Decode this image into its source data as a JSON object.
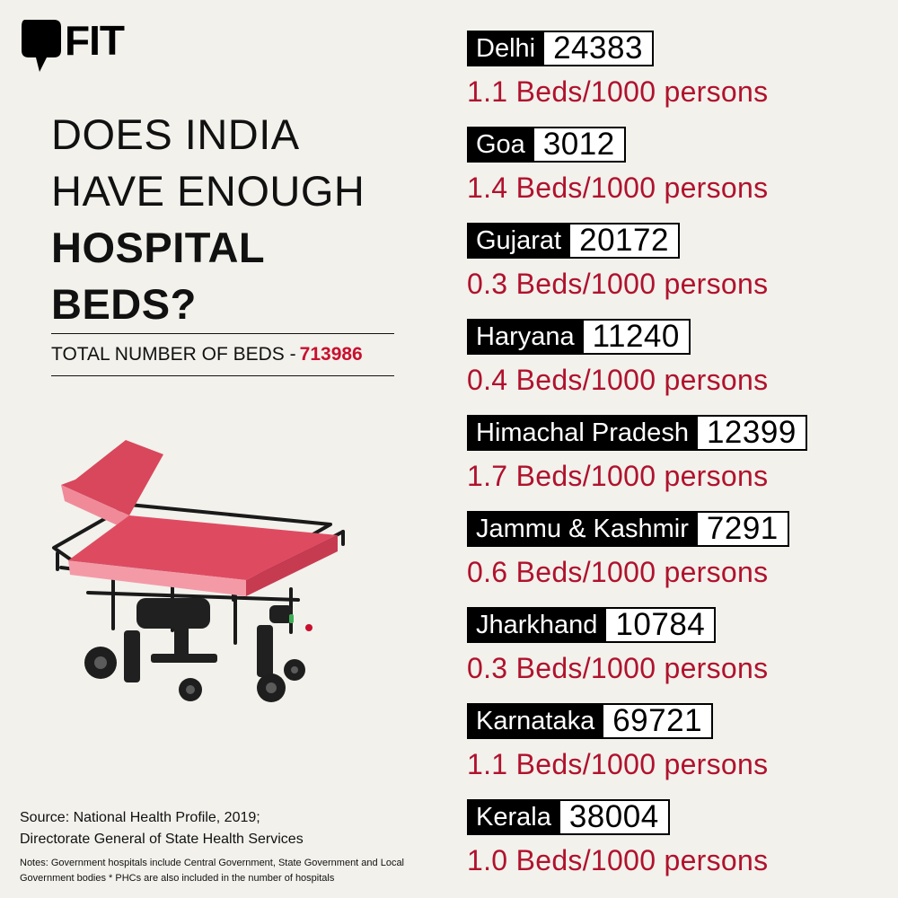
{
  "brand": {
    "name": "FIT"
  },
  "headline": {
    "line1": "DOES INDIA",
    "line2": "HAVE ENOUGH",
    "line3": "HOSPITAL",
    "line4": "BEDS?"
  },
  "total": {
    "label": "TOTAL NUMBER OF BEDS - ",
    "value": "713986"
  },
  "states": [
    {
      "name": "Delhi",
      "beds": "24383",
      "rate": "1.1 Beds/1000 persons"
    },
    {
      "name": "Goa",
      "beds": "3012",
      "rate": "1.4 Beds/1000 persons"
    },
    {
      "name": "Gujarat",
      "beds": "20172",
      "rate": "0.3 Beds/1000 persons"
    },
    {
      "name": "Haryana",
      "beds": "11240",
      "rate": "0.4 Beds/1000 persons"
    },
    {
      "name": "Himachal Pradesh",
      "beds": "12399",
      "rate": "1.7 Beds/1000 persons"
    },
    {
      "name": "Jammu & Kashmir",
      "beds": "7291",
      "rate": "0.6 Beds/1000 persons"
    },
    {
      "name": "Jharkhand",
      "beds": "10784",
      "rate": "0.3 Beds/1000 persons"
    },
    {
      "name": "Karnataka",
      "beds": "69721",
      "rate": "1.1 Beds/1000 persons"
    },
    {
      "name": "Kerala",
      "beds": "38004",
      "rate": "1.0 Beds/1000 persons"
    }
  ],
  "source": {
    "line1": "Source: National Health Profile, 2019;",
    "line2": "Directorate General of State Health Services"
  },
  "notes": {
    "text": "Notes: Government hospitals include Central Government, State Government and Local Government bodies * PHCs are also included in the number of hospitals"
  },
  "colors": {
    "background": "#f2f1ec",
    "accent": "#c8102e",
    "ink": "#111111"
  },
  "icons": {
    "logo": "speech-bubble-logo-icon",
    "illustration": "hospital-stretcher-bed-icon"
  }
}
